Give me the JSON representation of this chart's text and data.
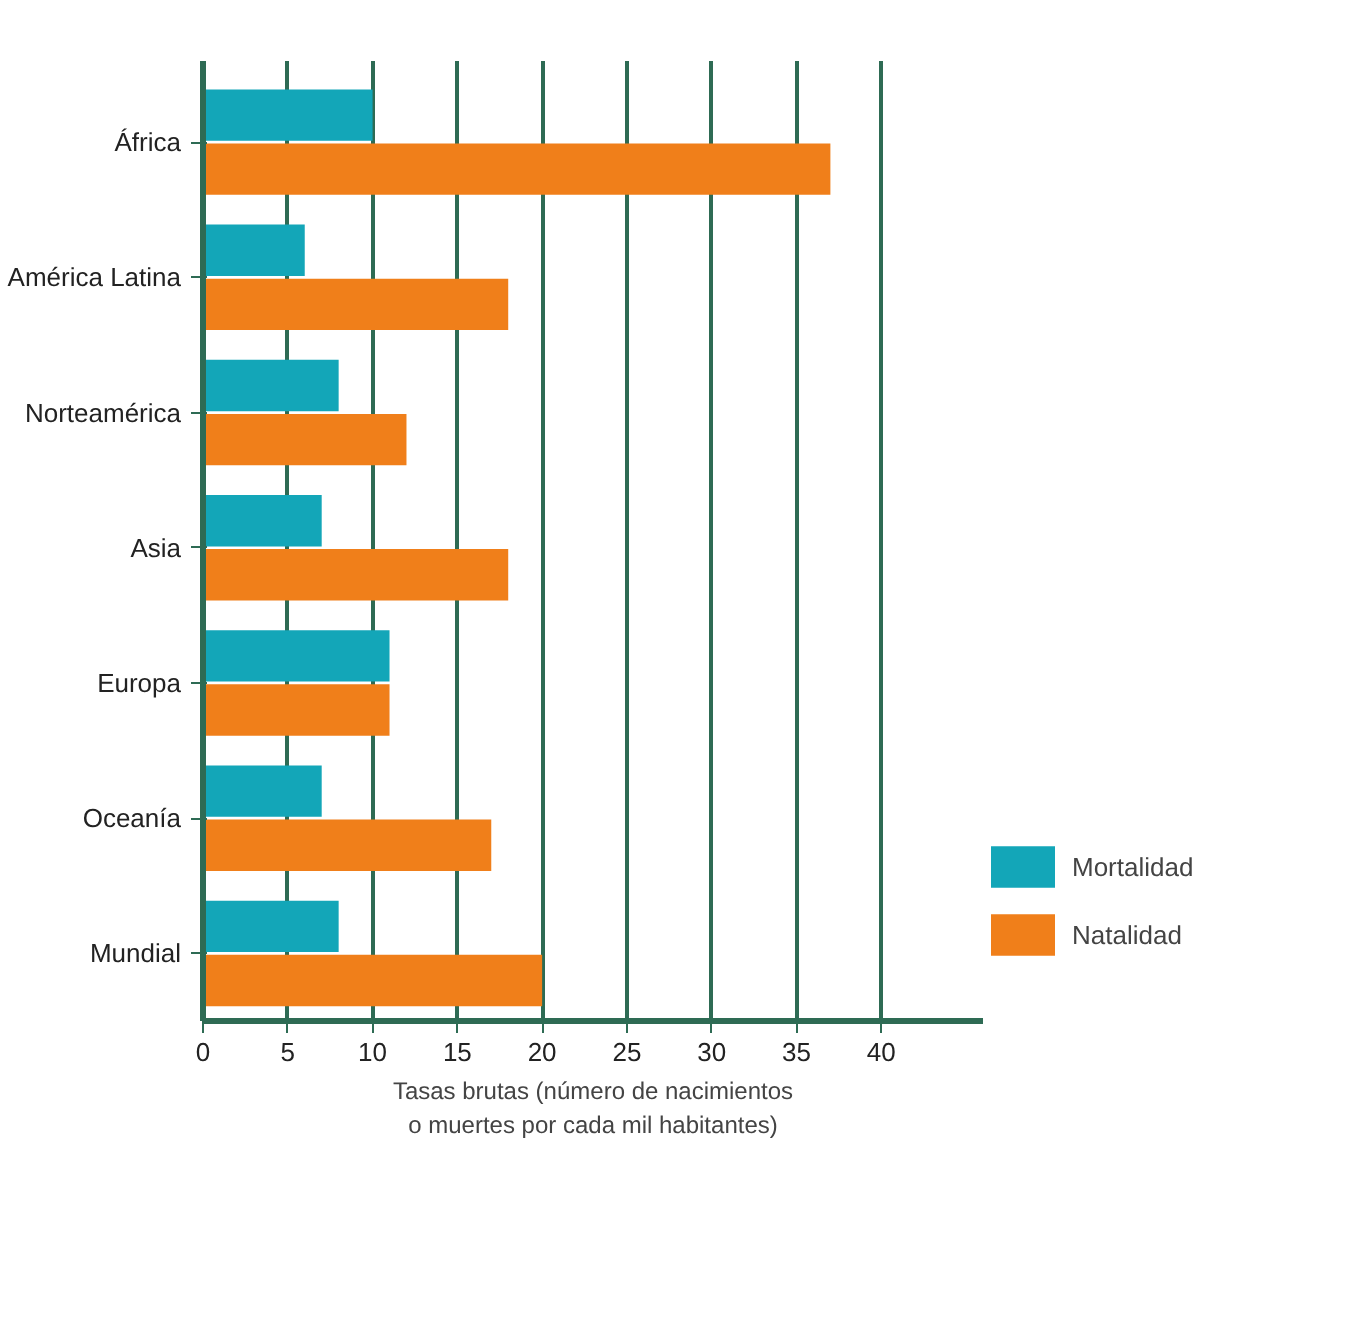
{
  "chart_data": {
    "type": "bar",
    "orientation": "horizontal",
    "xlabel": "Tasas brutas (número de nacimientos\no muertes por cada mil habitantes)",
    "categories": [
      "África",
      "América Latina",
      "Norteamérica",
      "Asia",
      "Europa",
      "Oceanía",
      "Mundial"
    ],
    "series": [
      {
        "name": "Mortalidad",
        "color": "#13a6b8",
        "values": [
          10,
          6,
          8,
          7,
          11,
          7,
          8
        ]
      },
      {
        "name": "Natalidad",
        "color": "#f07f1a",
        "values": [
          37,
          18,
          12,
          18,
          11,
          17,
          20
        ]
      }
    ],
    "xlim": [
      0,
      46
    ],
    "xticks": [
      0,
      5,
      10,
      15,
      20,
      25,
      30,
      35,
      40
    ],
    "grid": "x",
    "legend": "bottom right"
  }
}
